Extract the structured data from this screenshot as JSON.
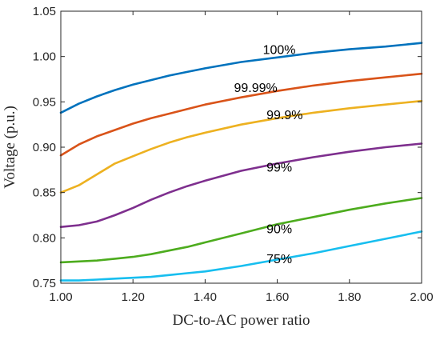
{
  "chart_data": {
    "type": "line",
    "title": "",
    "xlabel": "DC-to-AC power ratio",
    "ylabel": "Voltage (p.u.)",
    "xlim": [
      1.0,
      2.0
    ],
    "ylim": [
      0.75,
      1.05
    ],
    "xticks": [
      1.0,
      1.2,
      1.4,
      1.6,
      1.8,
      2.0
    ],
    "xtick_labels": [
      "1.00",
      "1.20",
      "1.40",
      "1.60",
      "1.80",
      "2.00"
    ],
    "yticks": [
      0.75,
      0.8,
      0.85,
      0.9,
      0.95,
      1.0,
      1.05
    ],
    "ytick_labels": [
      "0.75",
      "0.80",
      "0.85",
      "0.90",
      "0.95",
      "1.00",
      "1.05"
    ],
    "grid": false,
    "legend": "none (inline labels)",
    "series": [
      {
        "name": "100%",
        "color": "#0072BD",
        "label_at": [
          1.56,
          1.003
        ],
        "x": [
          1.0,
          1.05,
          1.1,
          1.15,
          1.2,
          1.25,
          1.3,
          1.35,
          1.4,
          1.5,
          1.6,
          1.7,
          1.8,
          1.9,
          2.0
        ],
        "y": [
          0.938,
          0.948,
          0.956,
          0.963,
          0.969,
          0.974,
          0.979,
          0.983,
          0.987,
          0.994,
          0.999,
          1.004,
          1.008,
          1.011,
          1.015
        ]
      },
      {
        "name": "99.99%",
        "color": "#D95319",
        "label_at": [
          1.48,
          0.961
        ],
        "x": [
          1.0,
          1.05,
          1.1,
          1.15,
          1.2,
          1.25,
          1.3,
          1.35,
          1.4,
          1.5,
          1.6,
          1.7,
          1.8,
          1.9,
          2.0
        ],
        "y": [
          0.891,
          0.903,
          0.912,
          0.919,
          0.926,
          0.932,
          0.937,
          0.942,
          0.947,
          0.955,
          0.962,
          0.968,
          0.973,
          0.977,
          0.981
        ]
      },
      {
        "name": "99.9%",
        "color": "#EDB120",
        "label_at": [
          1.57,
          0.931
        ],
        "x": [
          1.0,
          1.05,
          1.1,
          1.15,
          1.2,
          1.25,
          1.3,
          1.35,
          1.4,
          1.5,
          1.6,
          1.7,
          1.8,
          1.9,
          2.0
        ],
        "y": [
          0.85,
          0.858,
          0.87,
          0.882,
          0.89,
          0.898,
          0.905,
          0.911,
          0.916,
          0.925,
          0.932,
          0.938,
          0.943,
          0.947,
          0.951
        ]
      },
      {
        "name": "99%",
        "color": "#7E2F8E",
        "label_at": [
          1.57,
          0.873
        ],
        "x": [
          1.0,
          1.05,
          1.1,
          1.15,
          1.2,
          1.25,
          1.3,
          1.35,
          1.4,
          1.5,
          1.6,
          1.7,
          1.8,
          1.9,
          2.0
        ],
        "y": [
          0.812,
          0.814,
          0.818,
          0.825,
          0.833,
          0.842,
          0.85,
          0.857,
          0.863,
          0.874,
          0.882,
          0.889,
          0.895,
          0.9,
          0.904
        ]
      },
      {
        "name": "90%",
        "color": "#4DAC1E",
        "label_at": [
          1.57,
          0.805
        ],
        "x": [
          1.0,
          1.05,
          1.1,
          1.15,
          1.2,
          1.25,
          1.3,
          1.35,
          1.4,
          1.5,
          1.6,
          1.7,
          1.8,
          1.9,
          2.0
        ],
        "y": [
          0.773,
          0.774,
          0.775,
          0.777,
          0.779,
          0.782,
          0.786,
          0.79,
          0.795,
          0.805,
          0.815,
          0.823,
          0.831,
          0.838,
          0.844
        ]
      },
      {
        "name": "75%",
        "color": "#17BEEF",
        "label_at": [
          1.57,
          0.772
        ],
        "x": [
          1.0,
          1.05,
          1.1,
          1.15,
          1.2,
          1.25,
          1.3,
          1.35,
          1.4,
          1.5,
          1.6,
          1.7,
          1.8,
          1.9,
          2.0
        ],
        "y": [
          0.753,
          0.753,
          0.754,
          0.755,
          0.756,
          0.757,
          0.759,
          0.761,
          0.763,
          0.769,
          0.776,
          0.783,
          0.791,
          0.799,
          0.807
        ]
      }
    ]
  }
}
